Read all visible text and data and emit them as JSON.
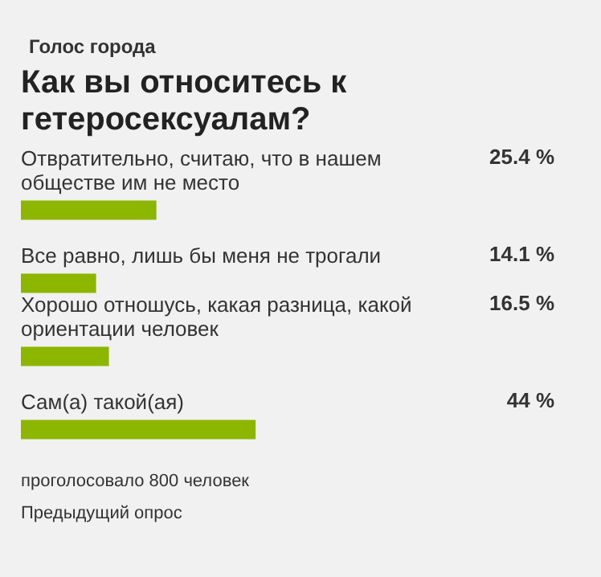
{
  "chart_data": {
    "type": "bar",
    "orientation": "horizontal",
    "subtitle": "Голос города",
    "title": "Как вы относитесь к гетеросексуалам?",
    "categories": [
      "Отвратительно, считаю, что в нашем обществе им не место",
      "Все равно, лишь бы меня не трогали",
      "Хорошо отношусь, какая разница, какой ориентации человек",
      "Сам(а) такой(ая)"
    ],
    "values": [
      25.4,
      14.1,
      16.5,
      44
    ],
    "value_labels": [
      "25.4 %",
      "14.1 %",
      "16.5 %",
      "44 %"
    ],
    "color": "#8db600",
    "tick_labels": false,
    "annotations": [
      "проголосовало 800 человек",
      "Предыдущий опрос"
    ]
  }
}
